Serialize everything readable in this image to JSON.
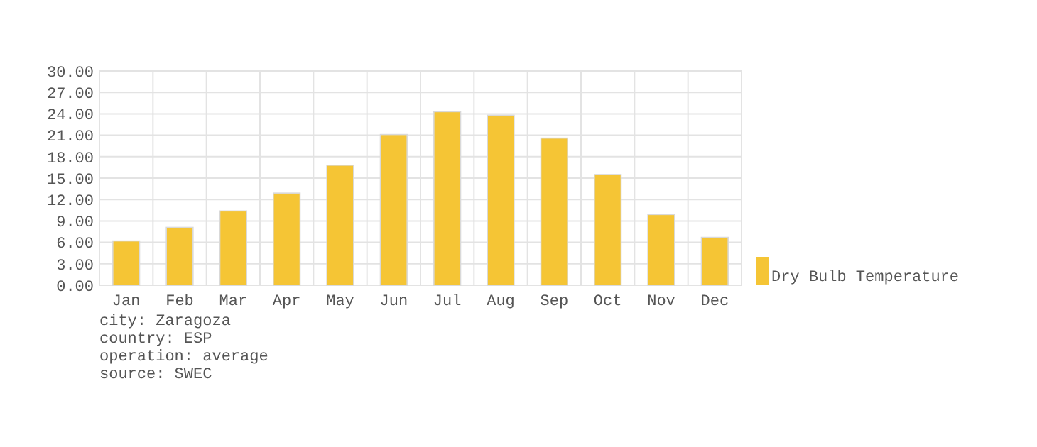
{
  "chart_data": {
    "type": "bar",
    "categories": [
      "Jan",
      "Feb",
      "Mar",
      "Apr",
      "May",
      "Jun",
      "Jul",
      "Aug",
      "Sep",
      "Oct",
      "Nov",
      "Dec"
    ],
    "series": [
      {
        "name": "Dry Bulb Temperature",
        "color": "#f5c535",
        "values": [
          6.2,
          8.1,
          10.4,
          12.9,
          16.8,
          21.1,
          24.3,
          23.8,
          20.6,
          15.5,
          9.9,
          6.7
        ]
      }
    ],
    "ylim": [
      0,
      30
    ],
    "yticks": [
      {
        "value": 0,
        "label": "0.00"
      },
      {
        "value": 3,
        "label": "3.00"
      },
      {
        "value": 6,
        "label": "6.00"
      },
      {
        "value": 9,
        "label": "9.00"
      },
      {
        "value": 12,
        "label": "12.00"
      },
      {
        "value": 15,
        "label": "15.00"
      },
      {
        "value": 18,
        "label": "18.00"
      },
      {
        "value": 21,
        "label": "21.00"
      },
      {
        "value": 24,
        "label": "24.00"
      },
      {
        "value": 27,
        "label": "27.00"
      },
      {
        "value": 30,
        "label": "30.00"
      }
    ],
    "grid": true,
    "legend": "right",
    "annotations": [
      "city: Zaragoza",
      "country: ESP",
      "operation: average",
      "source: SWEC"
    ]
  }
}
